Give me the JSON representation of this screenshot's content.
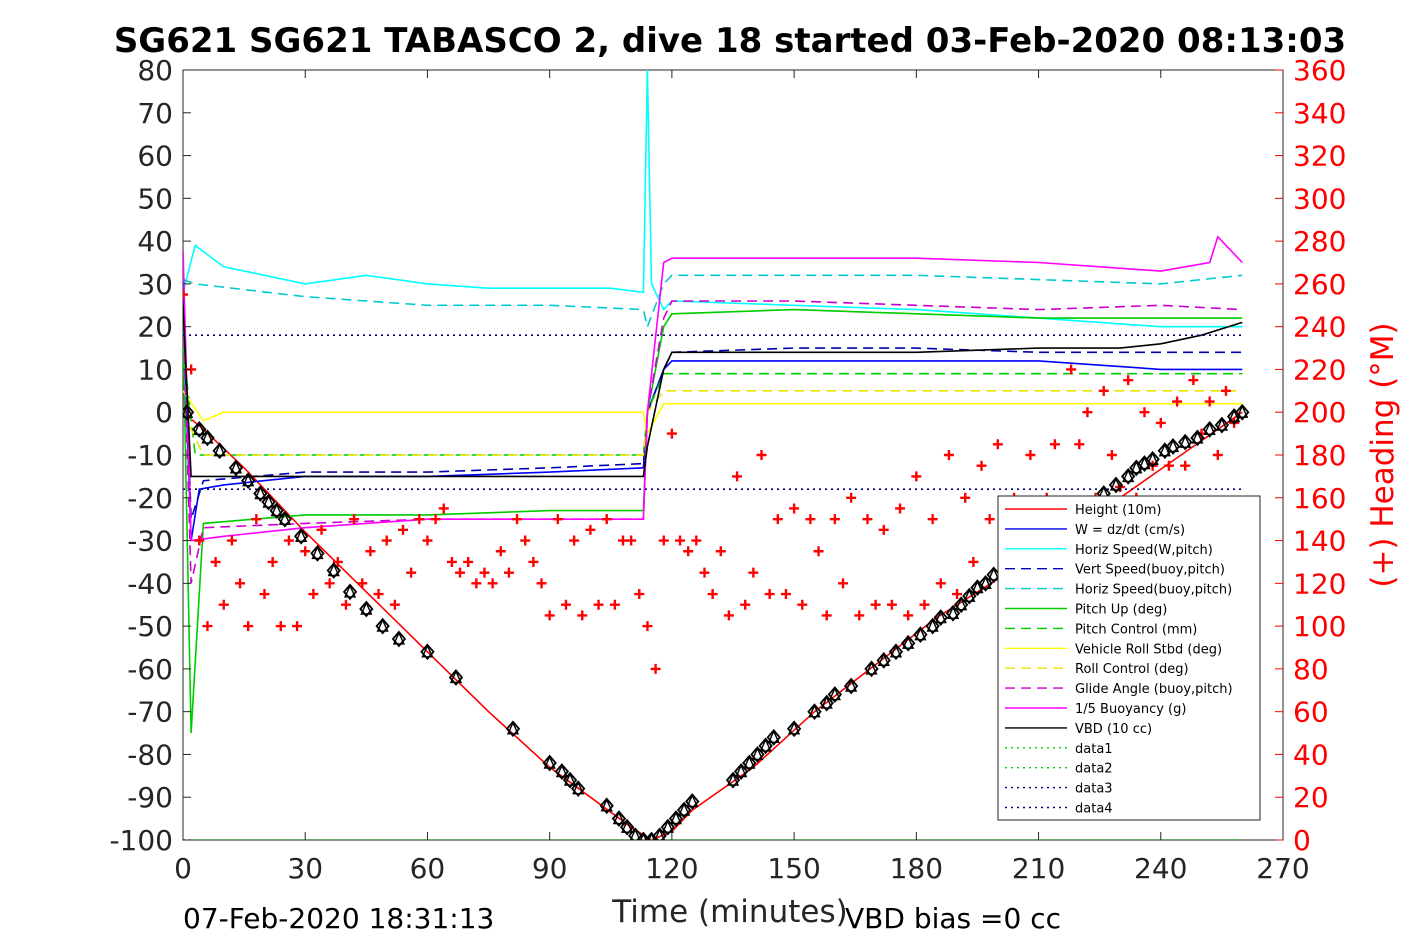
{
  "chart_data": {
    "type": "line",
    "title": "SG621 SG621 TABASCO 2, dive 18 started 03-Feb-2020 08:13:03",
    "xlabel": "Time (minutes)",
    "ylabel_right": "(+) Heading (°M)",
    "xlim": [
      0,
      270
    ],
    "ylim_left": [
      -100,
      80
    ],
    "ylim_right": [
      0,
      360
    ],
    "x_ticks": [
      "0",
      "30",
      "60",
      "90",
      "120",
      "150",
      "180",
      "210",
      "240",
      "270"
    ],
    "y_ticks_left": [
      "80",
      "70",
      "60",
      "50",
      "40",
      "30",
      "20",
      "10",
      "0",
      "-10",
      "-20",
      "-30",
      "-40",
      "-50",
      "-60",
      "-70",
      "-80",
      "-90",
      "-100"
    ],
    "y_ticks_right": [
      "360",
      "340",
      "320",
      "300",
      "280",
      "260",
      "240",
      "220",
      "200",
      "180",
      "160",
      "140",
      "120",
      "100",
      "80",
      "60",
      "40",
      "20",
      "0"
    ],
    "footer_left": "07-Feb-2020 18:31:13",
    "footer_right": "VBD bias =0 cc",
    "legend_position": "bottom-right",
    "series": [
      {
        "name": "Height (10m)",
        "color": "#ff0000",
        "style": "solid",
        "x": [
          0,
          5,
          15,
          30,
          45,
          60,
          75,
          90,
          100,
          110,
          115,
          120,
          125,
          140,
          155,
          170,
          185,
          200,
          215,
          230,
          245,
          260
        ],
        "y": [
          0,
          -4,
          -13,
          -28,
          -42,
          -56,
          -70,
          -83,
          -90,
          -97,
          -100,
          -98,
          -93,
          -83,
          -70,
          -59,
          -48,
          -39,
          -30,
          -20,
          -10,
          0
        ]
      },
      {
        "name": "W = dz/dt (cm/s)",
        "color": "#0000ff",
        "style": "solid",
        "x": [
          0,
          2,
          4,
          10,
          30,
          60,
          90,
          113,
          114,
          118,
          120,
          150,
          180,
          210,
          240,
          260
        ],
        "y": [
          25,
          -30,
          -18,
          -17,
          -15,
          -15,
          -14,
          -13,
          0,
          10,
          12,
          12,
          12,
          12,
          10,
          10
        ]
      },
      {
        "name": "Horiz Speed(W,pitch)",
        "color": "#00ffff",
        "style": "solid",
        "x": [
          0,
          3,
          10,
          20,
          30,
          45,
          60,
          75,
          90,
          105,
          113,
          114,
          115,
          118,
          120,
          150,
          180,
          210,
          240,
          260
        ],
        "y": [
          28,
          39,
          34,
          32,
          30,
          32,
          30,
          29,
          29,
          29,
          28,
          80,
          30,
          24,
          26,
          25,
          24,
          22,
          20,
          20
        ]
      },
      {
        "name": "Vert Speed(buoy,pitch)",
        "color": "#0000b3",
        "style": "dashed",
        "x": [
          0,
          2,
          5,
          30,
          60,
          90,
          113,
          114,
          118,
          120,
          150,
          180,
          210,
          240,
          260
        ],
        "y": [
          30,
          -25,
          -16,
          -14,
          -14,
          -13,
          -12,
          0,
          10,
          14,
          15,
          15,
          14,
          14,
          14
        ]
      },
      {
        "name": "Horiz Speed(buoy,pitch)",
        "color": "#00cccc",
        "style": "dashed",
        "x": [
          0,
          3,
          30,
          60,
          90,
          113,
          114,
          118,
          120,
          150,
          180,
          210,
          240,
          260
        ],
        "y": [
          31,
          30,
          27,
          25,
          25,
          24,
          20,
          30,
          32,
          32,
          32,
          31,
          30,
          32
        ]
      },
      {
        "name": "Pitch Up (deg)",
        "color": "#00cc00",
        "style": "solid",
        "x": [
          0,
          2,
          5,
          30,
          60,
          90,
          113,
          114,
          118,
          120,
          150,
          180,
          210,
          240,
          260
        ],
        "y": [
          20,
          -75,
          -26,
          -24,
          -24,
          -23,
          -23,
          0,
          20,
          23,
          24,
          23,
          22,
          22,
          22
        ]
      },
      {
        "name": "Pitch Control (mm)",
        "color": "#00cc00",
        "style": "dashed",
        "x": [
          0,
          3,
          30,
          60,
          90,
          113,
          114,
          118,
          150,
          180,
          210,
          240,
          260
        ],
        "y": [
          15,
          -10,
          -10,
          -10,
          -10,
          -10,
          0,
          9,
          9,
          9,
          9,
          9,
          9
        ]
      },
      {
        "name": "Vehicle Roll Stbd (deg)",
        "color": "#ffff00",
        "style": "solid",
        "x": [
          0,
          5,
          10,
          30,
          60,
          90,
          113,
          114,
          118,
          150,
          180,
          210,
          240,
          260
        ],
        "y": [
          5,
          -2,
          0,
          0,
          0,
          0,
          0,
          -5,
          2,
          2,
          2,
          2,
          2,
          2
        ]
      },
      {
        "name": "Roll Control (deg)",
        "color": "#e6e600",
        "style": "dashed",
        "x": [
          0,
          5,
          30,
          60,
          90,
          113,
          114,
          118,
          150,
          180,
          210,
          240,
          260
        ],
        "y": [
          0,
          -10,
          -10,
          -10,
          -10,
          -10,
          0,
          5,
          5,
          5,
          5,
          5,
          5
        ]
      },
      {
        "name": "Glide Angle (buoy,pitch)",
        "color": "#cc00cc",
        "style": "dashed",
        "x": [
          0,
          2,
          5,
          30,
          60,
          90,
          113,
          114,
          118,
          120,
          150,
          180,
          210,
          240,
          260
        ],
        "y": [
          25,
          -40,
          -27,
          -26,
          -25,
          -25,
          -25,
          0,
          22,
          26,
          26,
          25,
          24,
          25,
          24
        ]
      },
      {
        "name": "1/5 Buoyancy (g)",
        "color": "#ff00ff",
        "style": "solid",
        "x": [
          0,
          2,
          10,
          30,
          60,
          90,
          113,
          114,
          118,
          120,
          150,
          180,
          210,
          240,
          252,
          254,
          260
        ],
        "y": [
          38,
          -30,
          -29,
          -27,
          -25,
          -25,
          -25,
          0,
          35,
          36,
          36,
          36,
          35,
          33,
          35,
          41,
          35
        ]
      },
      {
        "name": "VBD (10 cc)",
        "color": "#000000",
        "style": "solid",
        "x": [
          0,
          2,
          30,
          60,
          90,
          113,
          114,
          118,
          120,
          150,
          180,
          210,
          230,
          240,
          250,
          260
        ],
        "y": [
          25,
          -15,
          -15,
          -15,
          -15,
          -15,
          -8,
          10,
          14,
          14,
          14,
          15,
          15,
          16,
          18,
          21
        ]
      },
      {
        "name": "data1",
        "color": "#00cc00",
        "style": "dotted",
        "x": [
          0,
          260
        ],
        "y": [
          -100,
          -100
        ]
      },
      {
        "name": "data2",
        "color": "#00cc00",
        "style": "dotted",
        "x": [
          0,
          260
        ],
        "y": [
          -100,
          -100
        ]
      },
      {
        "name": "data3",
        "color": "#000080",
        "style": "dotted",
        "x": [
          0,
          260
        ],
        "y": [
          18,
          18
        ]
      },
      {
        "name": "data4",
        "color": "#000080",
        "style": "dotted",
        "x": [
          0,
          260
        ],
        "y": [
          -18,
          -18
        ]
      }
    ],
    "heading_series": {
      "color": "#ff0000",
      "marker": "+",
      "x": [
        0,
        2,
        4,
        6,
        8,
        10,
        12,
        14,
        16,
        18,
        20,
        22,
        24,
        26,
        28,
        30,
        32,
        34,
        36,
        38,
        40,
        42,
        44,
        46,
        48,
        50,
        52,
        54,
        56,
        58,
        60,
        62,
        64,
        66,
        68,
        70,
        72,
        74,
        76,
        78,
        80,
        82,
        84,
        86,
        88,
        90,
        92,
        94,
        96,
        98,
        100,
        102,
        104,
        106,
        108,
        110,
        112,
        114,
        116,
        118,
        120,
        122,
        124,
        126,
        128,
        130,
        132,
        134,
        136,
        138,
        140,
        142,
        144,
        146,
        148,
        150,
        152,
        154,
        156,
        158,
        160,
        162,
        164,
        166,
        168,
        170,
        172,
        174,
        176,
        178,
        180,
        182,
        184,
        186,
        188,
        190,
        192,
        194,
        196,
        198,
        200,
        202,
        204,
        206,
        208,
        210,
        212,
        214,
        216,
        218,
        220,
        222,
        224,
        226,
        228,
        230,
        232,
        234,
        236,
        238,
        240,
        242,
        244,
        246,
        248,
        250,
        252,
        254,
        256,
        258
      ],
      "y": [
        255,
        220,
        140,
        100,
        130,
        110,
        140,
        120,
        100,
        150,
        115,
        130,
        100,
        140,
        100,
        135,
        115,
        145,
        120,
        130,
        110,
        150,
        120,
        135,
        115,
        140,
        110,
        145,
        125,
        150,
        140,
        150,
        155,
        130,
        125,
        130,
        120,
        125,
        120,
        135,
        125,
        150,
        140,
        130,
        120,
        105,
        150,
        110,
        140,
        105,
        145,
        110,
        150,
        110,
        140,
        140,
        115,
        100,
        80,
        140,
        190,
        140,
        135,
        140,
        125,
        115,
        135,
        105,
        170,
        110,
        125,
        180,
        115,
        150,
        115,
        155,
        110,
        150,
        135,
        105,
        150,
        120,
        160,
        105,
        150,
        110,
        145,
        110,
        155,
        105,
        170,
        110,
        150,
        120,
        180,
        115,
        160,
        130,
        175,
        150,
        185,
        130,
        160,
        125,
        180,
        120,
        160,
        185,
        150,
        220,
        185,
        200,
        160,
        210,
        180,
        165,
        215,
        160,
        200,
        175,
        195,
        175,
        205,
        175,
        215,
        190,
        205,
        180,
        210,
        195
      ]
    },
    "depth_markers": {
      "color": "#000000",
      "x": [
        1,
        4,
        6,
        9,
        13,
        16,
        19,
        21,
        23,
        25,
        29,
        33,
        37,
        41,
        45,
        49,
        53,
        60,
        67,
        81,
        90,
        93,
        95,
        97,
        104,
        107,
        109,
        111,
        113,
        115,
        117,
        119,
        121,
        123,
        125,
        135,
        137,
        139,
        141,
        143,
        145,
        150,
        155,
        158,
        160,
        164,
        169,
        172,
        175,
        178,
        181,
        184,
        186,
        189,
        191,
        193,
        195,
        197,
        199,
        204,
        212,
        218,
        222,
        226,
        229,
        232,
        234,
        236,
        238,
        241,
        243,
        246,
        249,
        252,
        255,
        258,
        260
      ],
      "y": [
        0,
        -4,
        -6,
        -9,
        -13,
        -16,
        -19,
        -21,
        -23,
        -25,
        -29,
        -33,
        -37,
        -42,
        -46,
        -50,
        -53,
        -56,
        -62,
        -74,
        -82,
        -84,
        -86,
        -88,
        -92,
        -95,
        -97,
        -99,
        -100,
        -100,
        -99,
        -97,
        -95,
        -93,
        -91,
        -86,
        -84,
        -82,
        -80,
        -78,
        -76,
        -74,
        -70,
        -68,
        -66,
        -64,
        -60,
        -58,
        -56,
        -54,
        -52,
        -50,
        -48,
        -47,
        -45,
        -43,
        -41,
        -40,
        -38,
        -35,
        -30,
        -25,
        -22,
        -19,
        -17,
        -15,
        -13,
        -12,
        -11,
        -9,
        -8,
        -7,
        -6,
        -4,
        -3,
        -1,
        0
      ]
    }
  }
}
